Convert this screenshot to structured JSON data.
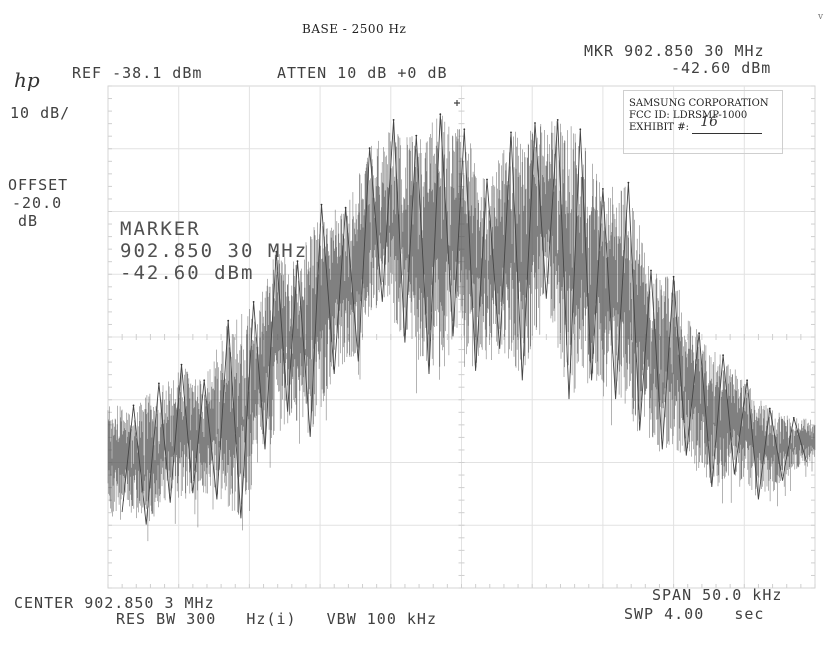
{
  "header": {
    "base_label": "BASE - 2500 Hz",
    "corner_mark": "v",
    "logo": "hp",
    "ref_label": "REF -38.1 dBm",
    "atten_label": "ATTEN 10 dB +0 dB",
    "mkr_line1": "MKR 902.850 30 MHz",
    "mkr_line2": "-42.60 dBm",
    "scale_label": "10 dB/",
    "offset_label": "OFFSET",
    "offset_value": "-20.0",
    "offset_unit": "dB"
  },
  "marker": {
    "title": "MARKER",
    "freq": "902.850 30 MHz",
    "level": "-42.60 dBm"
  },
  "stamp": {
    "company": "SAMSUNG CORPORATION",
    "fcc": "FCC ID:  LDRSMP-1000",
    "exhibit_label": "EXHIBIT #:",
    "exhibit_value": "16"
  },
  "footer": {
    "center_label": "CENTER 902.850 3 MHz",
    "span_label": "SPAN 50.0 kHz",
    "res_bw_label": "RES BW 300   Hz(i)   VBW 100 kHz",
    "swp_label": "SWP 4.00   sec"
  },
  "chart_data": {
    "type": "line",
    "xlabel": "",
    "ylabel": "",
    "x_unit": "MHz",
    "y_unit": "dBm",
    "xlim": [
      902.8253,
      902.8753
    ],
    "ylim": [
      -118.1,
      -38.1
    ],
    "grid": true,
    "trace_color": "#555555",
    "peaks": {
      "x": [
        902.8271,
        902.8289,
        902.8305,
        902.8321,
        902.8338,
        902.8356,
        902.8372,
        902.8387,
        902.8404,
        902.8421,
        902.8438,
        902.8455,
        902.8471,
        902.8488,
        902.8505,
        902.8521,
        902.8538,
        902.8555,
        902.8571,
        902.8587,
        902.8603,
        902.8621,
        902.8637,
        902.8653,
        902.8671,
        902.8688,
        902.8705,
        902.8721,
        902.8738
      ],
      "y": [
        -89.0,
        -85.5,
        -82.5,
        -85.0,
        -75.5,
        -72.5,
        -64.5,
        -66.0,
        -57.0,
        -57.5,
        -48.0,
        -43.5,
        -46.0,
        -42.6,
        -45.0,
        -53.0,
        -45.5,
        -44.0,
        -43.5,
        -45.0,
        -54.5,
        -53.5,
        -67.5,
        -68.5,
        -77.5,
        -81.0,
        -85.0,
        -89.5,
        -91.0
      ]
    },
    "valleys": {
      "x": [
        902.8263,
        902.828,
        902.8297,
        902.8313,
        902.833,
        902.8347,
        902.8364,
        902.838,
        902.8396,
        902.8413,
        902.843,
        902.8447,
        902.8463,
        902.848,
        902.8497,
        902.8513,
        902.853,
        902.8546,
        902.8563,
        902.8579,
        902.8595,
        902.8612,
        902.8629,
        902.8645,
        902.8662,
        902.868,
        902.8696,
        902.8713,
        902.873,
        902.8747
      ],
      "y": [
        -106.0,
        -108.0,
        -104.5,
        -103.0,
        -104.0,
        -107.0,
        -96.0,
        -90.0,
        -94.0,
        -84.0,
        -82.0,
        -72.5,
        -79.0,
        -84.0,
        -78.0,
        -83.5,
        -80.0,
        -85.0,
        -72.0,
        -88.0,
        -85.0,
        -88.0,
        -93.0,
        -96.0,
        -97.0,
        -102.0,
        -100.0,
        -104.0,
        -101.0,
        -98.0
      ]
    }
  }
}
